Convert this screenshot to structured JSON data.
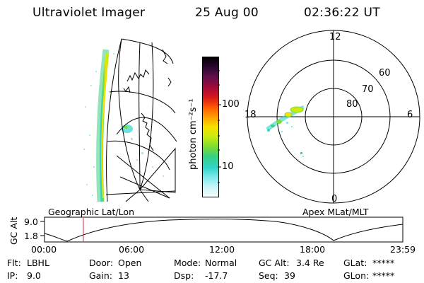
{
  "header": {
    "instrument": "Ultraviolet Imager",
    "date": "25 Aug 00",
    "time": "02:36:22 UT"
  },
  "colorbar": {
    "unit_label": "photon cm⁻²s⁻¹",
    "ticks": [
      "100",
      "10"
    ],
    "colors": [
      "#000000",
      "#2a0830",
      "#60104a",
      "#9c0a3c",
      "#d81a1a",
      "#ff5a00",
      "#ffa000",
      "#f6e000",
      "#c8ec10",
      "#80dc30",
      "#38d080",
      "#30d4c8",
      "#80e8ec",
      "#c8f4f8",
      "#f4fcff"
    ]
  },
  "polar_plot": {
    "mlt_labels": {
      "top": "12",
      "left": "18",
      "right": "6",
      "bottom": "0"
    },
    "lat_labels": [
      "60",
      "70",
      "80"
    ]
  },
  "panel_labels": {
    "left": "Geographic Lat/Lon",
    "right": "Apex MLat/MLT"
  },
  "altitude_plot": {
    "ylabel": "GC Alt",
    "yticks": [
      "9.0",
      "1.8"
    ],
    "xticks": [
      "00:00",
      "06:00",
      "12:00",
      "18:00",
      "23:59"
    ],
    "current_time_marker_hours": 2.6,
    "marker_color": "#e02020"
  },
  "info": {
    "filter_label": "Flt:",
    "filter_value": "LBHL",
    "door_label": "Door:",
    "door_value": "Open",
    "mode_label": "Mode:",
    "mode_value": "Normal",
    "gcalt_label": "GC Alt:",
    "gcalt_value": "3.4 Re",
    "glat_label": "GLat:",
    "glat_value": "*****",
    "ip_label": "IP:",
    "ip_value": "9.0",
    "gain_label": "Gain:",
    "gain_value": "13",
    "dsp_label": "Dsp:",
    "dsp_value": "-17.7",
    "seq_label": "Seq:",
    "seq_value": "39",
    "glon_label": "GLon:",
    "glon_value": "*****"
  }
}
